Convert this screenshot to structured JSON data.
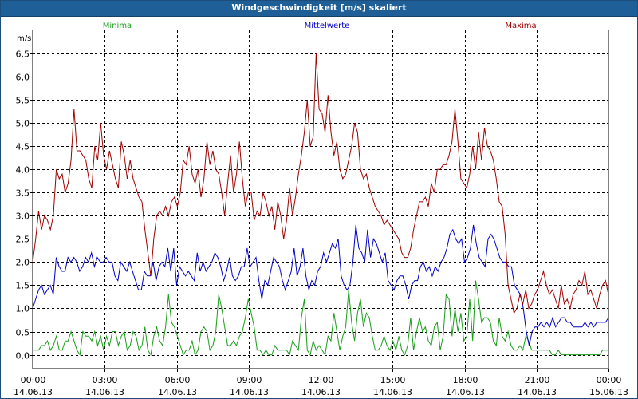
{
  "colors": {
    "titlebar": "#1f5f97",
    "minima": "#1a9e1a",
    "mittel": "#0000c8",
    "maxima": "#a00000",
    "grid": "#000000"
  },
  "chart_data": {
    "type": "line",
    "title": "Windgeschwindigkeit [m/s] skaliert",
    "ylabel": "m/s",
    "ylim": [
      -0.3,
      7.0
    ],
    "xlim": [
      0,
      24
    ],
    "yticks": [
      0.0,
      0.5,
      1.0,
      1.5,
      2.0,
      2.5,
      3.0,
      3.5,
      4.0,
      4.5,
      5.0,
      5.5,
      6.0,
      6.5
    ],
    "ytick_labels": [
      "0,0",
      "0,5",
      "1,0",
      "1,5",
      "2,0",
      "2,5",
      "3,0",
      "3,5",
      "4,0",
      "4,5",
      "5,0",
      "5,5",
      "6,0",
      "6,5"
    ],
    "xticks": [
      {
        "time": "00:00",
        "date": "14.06.13"
      },
      {
        "time": "03:00",
        "date": "14.06.13"
      },
      {
        "time": "06:00",
        "date": "14.06.13"
      },
      {
        "time": "09:00",
        "date": "14.06.13"
      },
      {
        "time": "12:00",
        "date": "14.06.13"
      },
      {
        "time": "15:00",
        "date": "14.06.13"
      },
      {
        "time": "18:00",
        "date": "14.06.13"
      },
      {
        "time": "21:00",
        "date": "14.06.13"
      },
      {
        "time": "00:00",
        "date": "15.06.13"
      }
    ],
    "series": [
      {
        "name": "Minima",
        "values": [
          0.1,
          0.1,
          0.1,
          0.2,
          0.2,
          0.3,
          0.1,
          0.2,
          0.4,
          0.1,
          0.1,
          0.3,
          0.3,
          0.5,
          0.3,
          0.1,
          0.0,
          0.5,
          0.4,
          0.4,
          0.3,
          0.5,
          0.2,
          0.4,
          0.1,
          0.4,
          0.2,
          0.5,
          0.5,
          0.2,
          0.4,
          0.5,
          0.1,
          0.2,
          0.5,
          0.4,
          0.1,
          0.2,
          0.6,
          0.1,
          0.0,
          0.4,
          0.6,
          0.3,
          0.2,
          0.6,
          1.3,
          0.7,
          0.6,
          0.4,
          0.2,
          0.0,
          0.1,
          0.1,
          0.3,
          0.0,
          0.1,
          0.5,
          0.6,
          0.5,
          0.1,
          0.2,
          0.5,
          1.3,
          1.0,
          0.6,
          0.2,
          0.2,
          0.3,
          0.2,
          0.4,
          0.5,
          0.8,
          1.2,
          0.9,
          0.6,
          0.1,
          0.1,
          0.0,
          0.1,
          0.0,
          0.0,
          0.2,
          0.1,
          0.1,
          0.1,
          0.1,
          0.0,
          0.3,
          0.2,
          0.1,
          0.8,
          1.2,
          0.1,
          0.0,
          0.3,
          0.1,
          0.2,
          0.1,
          0.0,
          0.4,
          0.3,
          0.9,
          0.5,
          0.1,
          0.4,
          0.6,
          1.4,
          0.7,
          0.3,
          0.9,
          1.2,
          0.6,
          0.9,
          0.8,
          0.4,
          0.1,
          0.1,
          0.2,
          0.4,
          0.2,
          0.1,
          0.3,
          0.1,
          0.4,
          0.1,
          0.0,
          0.2,
          0.8,
          0.1,
          0.5,
          0.8,
          0.5,
          0.6,
          0.3,
          0.2,
          0.6,
          0.7,
          0.1,
          0.4,
          1.3,
          1.2,
          0.4,
          1.0,
          0.5,
          0.9,
          0.3,
          0.4,
          1.2,
          0.3,
          1.6,
          1.2,
          0.7,
          0.8,
          0.8,
          0.7,
          0.3,
          0.2,
          0.8,
          0.4,
          0.3,
          0.5,
          0.2,
          0.1,
          0.1,
          0.2,
          0.1,
          0.4,
          0.3,
          0.1,
          0.1,
          0.1,
          0.1,
          0.1,
          0.1,
          0.1,
          0.0,
          0.0,
          0.1,
          0.0,
          0.0,
          0.0,
          0.0,
          0.0,
          0.0,
          0.0,
          0.0,
          0.0,
          0.0,
          0.0,
          0.0,
          0.0,
          0.0,
          0.1,
          0.1,
          0.1
        ]
      },
      {
        "name": "Mittelwerte",
        "values": [
          1.0,
          1.2,
          1.4,
          1.5,
          1.3,
          1.4,
          1.5,
          1.3,
          2.1,
          1.9,
          1.8,
          1.8,
          2.1,
          2.0,
          2.1,
          2.0,
          1.8,
          1.9,
          2.1,
          2.0,
          2.2,
          1.9,
          2.1,
          2.0,
          2.0,
          2.1,
          2.0,
          2.0,
          1.7,
          1.6,
          2.0,
          1.9,
          1.8,
          2.0,
          1.8,
          1.6,
          1.4,
          1.4,
          1.8,
          1.7,
          1.7,
          2.0,
          1.6,
          1.9,
          2.0,
          1.9,
          2.3,
          1.8,
          2.3,
          1.5,
          1.9,
          1.8,
          1.7,
          1.8,
          1.7,
          1.6,
          2.2,
          1.8,
          2.0,
          1.8,
          1.9,
          2.0,
          2.2,
          2.1,
          1.9,
          1.6,
          1.8,
          2.1,
          1.7,
          1.6,
          1.7,
          1.9,
          1.9,
          2.3,
          1.9,
          2.0,
          2.1,
          1.6,
          1.2,
          1.6,
          1.5,
          1.8,
          2.1,
          2.0,
          1.9,
          1.6,
          1.4,
          1.6,
          1.8,
          2.3,
          1.7,
          1.9,
          2.3,
          1.7,
          1.4,
          1.6,
          1.5,
          1.8,
          1.9,
          2.2,
          2.0,
          2.2,
          2.4,
          2.3,
          2.5,
          1.7,
          1.5,
          1.4,
          1.5,
          2.0,
          2.8,
          2.3,
          2.2,
          2.0,
          2.7,
          2.1,
          2.5,
          2.4,
          2.2,
          2.0,
          2.2,
          1.6,
          1.5,
          1.4,
          1.6,
          1.7,
          1.7,
          1.5,
          1.2,
          1.5,
          1.6,
          1.6,
          1.9,
          2.0,
          1.8,
          1.9,
          1.7,
          1.9,
          1.8,
          2.0,
          2.1,
          2.3,
          2.6,
          2.7,
          2.5,
          2.4,
          2.5,
          2.0,
          2.1,
          2.3,
          2.8,
          2.4,
          2.1,
          2.0,
          1.9,
          2.5,
          2.6,
          2.5,
          2.3,
          2.1,
          2.0,
          2.0,
          1.9,
          1.9,
          1.5,
          1.4,
          1.3,
          1.0,
          0.5,
          0.2,
          0.5,
          0.6,
          0.6,
          0.7,
          0.6,
          0.7,
          0.6,
          0.8,
          0.6,
          0.7,
          0.8,
          0.8,
          0.7,
          0.7,
          0.6,
          0.6,
          0.6,
          0.6,
          0.7,
          0.6,
          0.7,
          0.6,
          0.7,
          0.7,
          0.7,
          0.7,
          0.8
        ]
      },
      {
        "name": "Maxima",
        "values": [
          2.0,
          2.5,
          3.1,
          2.7,
          3.0,
          2.9,
          2.7,
          3.0,
          4.0,
          3.8,
          3.9,
          3.5,
          3.7,
          4.2,
          5.3,
          4.4,
          4.4,
          4.3,
          4.2,
          3.8,
          3.6,
          4.5,
          4.2,
          5.0,
          4.3,
          4.0,
          4.4,
          4.1,
          3.8,
          3.6,
          4.6,
          4.3,
          3.8,
          4.2,
          3.8,
          3.6,
          3.4,
          3.3,
          2.7,
          2.2,
          1.7,
          2.5,
          3.0,
          3.1,
          3.0,
          3.2,
          3.0,
          3.3,
          3.4,
          3.2,
          3.5,
          4.2,
          4.1,
          4.5,
          3.9,
          3.7,
          4.0,
          3.4,
          3.8,
          4.6,
          4.1,
          4.4,
          4.0,
          3.9,
          3.5,
          3.0,
          3.7,
          4.3,
          3.5,
          3.9,
          4.6,
          3.8,
          3.2,
          3.5,
          3.5,
          2.9,
          3.1,
          3.0,
          3.5,
          3.3,
          3.0,
          3.2,
          2.7,
          3.3,
          3.0,
          2.5,
          2.9,
          3.6,
          3.0,
          3.4,
          3.9,
          4.3,
          4.8,
          5.5,
          4.5,
          4.7,
          6.5,
          5.3,
          5.2,
          4.8,
          5.6,
          4.8,
          4.3,
          4.6,
          4.0,
          3.8,
          3.9,
          4.2,
          4.5,
          5.0,
          4.8,
          4.0,
          3.8,
          3.9,
          3.6,
          3.4,
          3.2,
          3.1,
          3.0,
          2.8,
          2.9,
          2.8,
          2.7,
          2.6,
          2.5,
          2.2,
          2.1,
          2.1,
          2.3,
          2.7,
          3.0,
          3.3,
          3.3,
          3.4,
          3.2,
          3.7,
          3.5,
          4.0,
          4.0,
          4.1,
          4.1,
          4.3,
          4.6,
          5.3,
          4.6,
          3.8,
          3.7,
          3.6,
          3.9,
          4.5,
          4.0,
          4.8,
          4.2,
          4.9,
          4.5,
          4.4,
          4.2,
          3.8,
          3.3,
          3.2,
          2.6,
          1.5,
          1.2,
          0.9,
          1.0,
          1.3,
          1.1,
          1.4,
          1.0,
          1.1,
          1.3,
          1.4,
          1.6,
          1.8,
          1.5,
          1.3,
          1.4,
          1.2,
          1.0,
          1.5,
          1.1,
          1.2,
          1.0,
          1.3,
          1.4,
          1.6,
          1.5,
          1.8,
          1.3,
          1.4,
          1.2,
          1.0,
          1.3,
          1.5,
          1.6,
          1.3
        ]
      }
    ]
  }
}
